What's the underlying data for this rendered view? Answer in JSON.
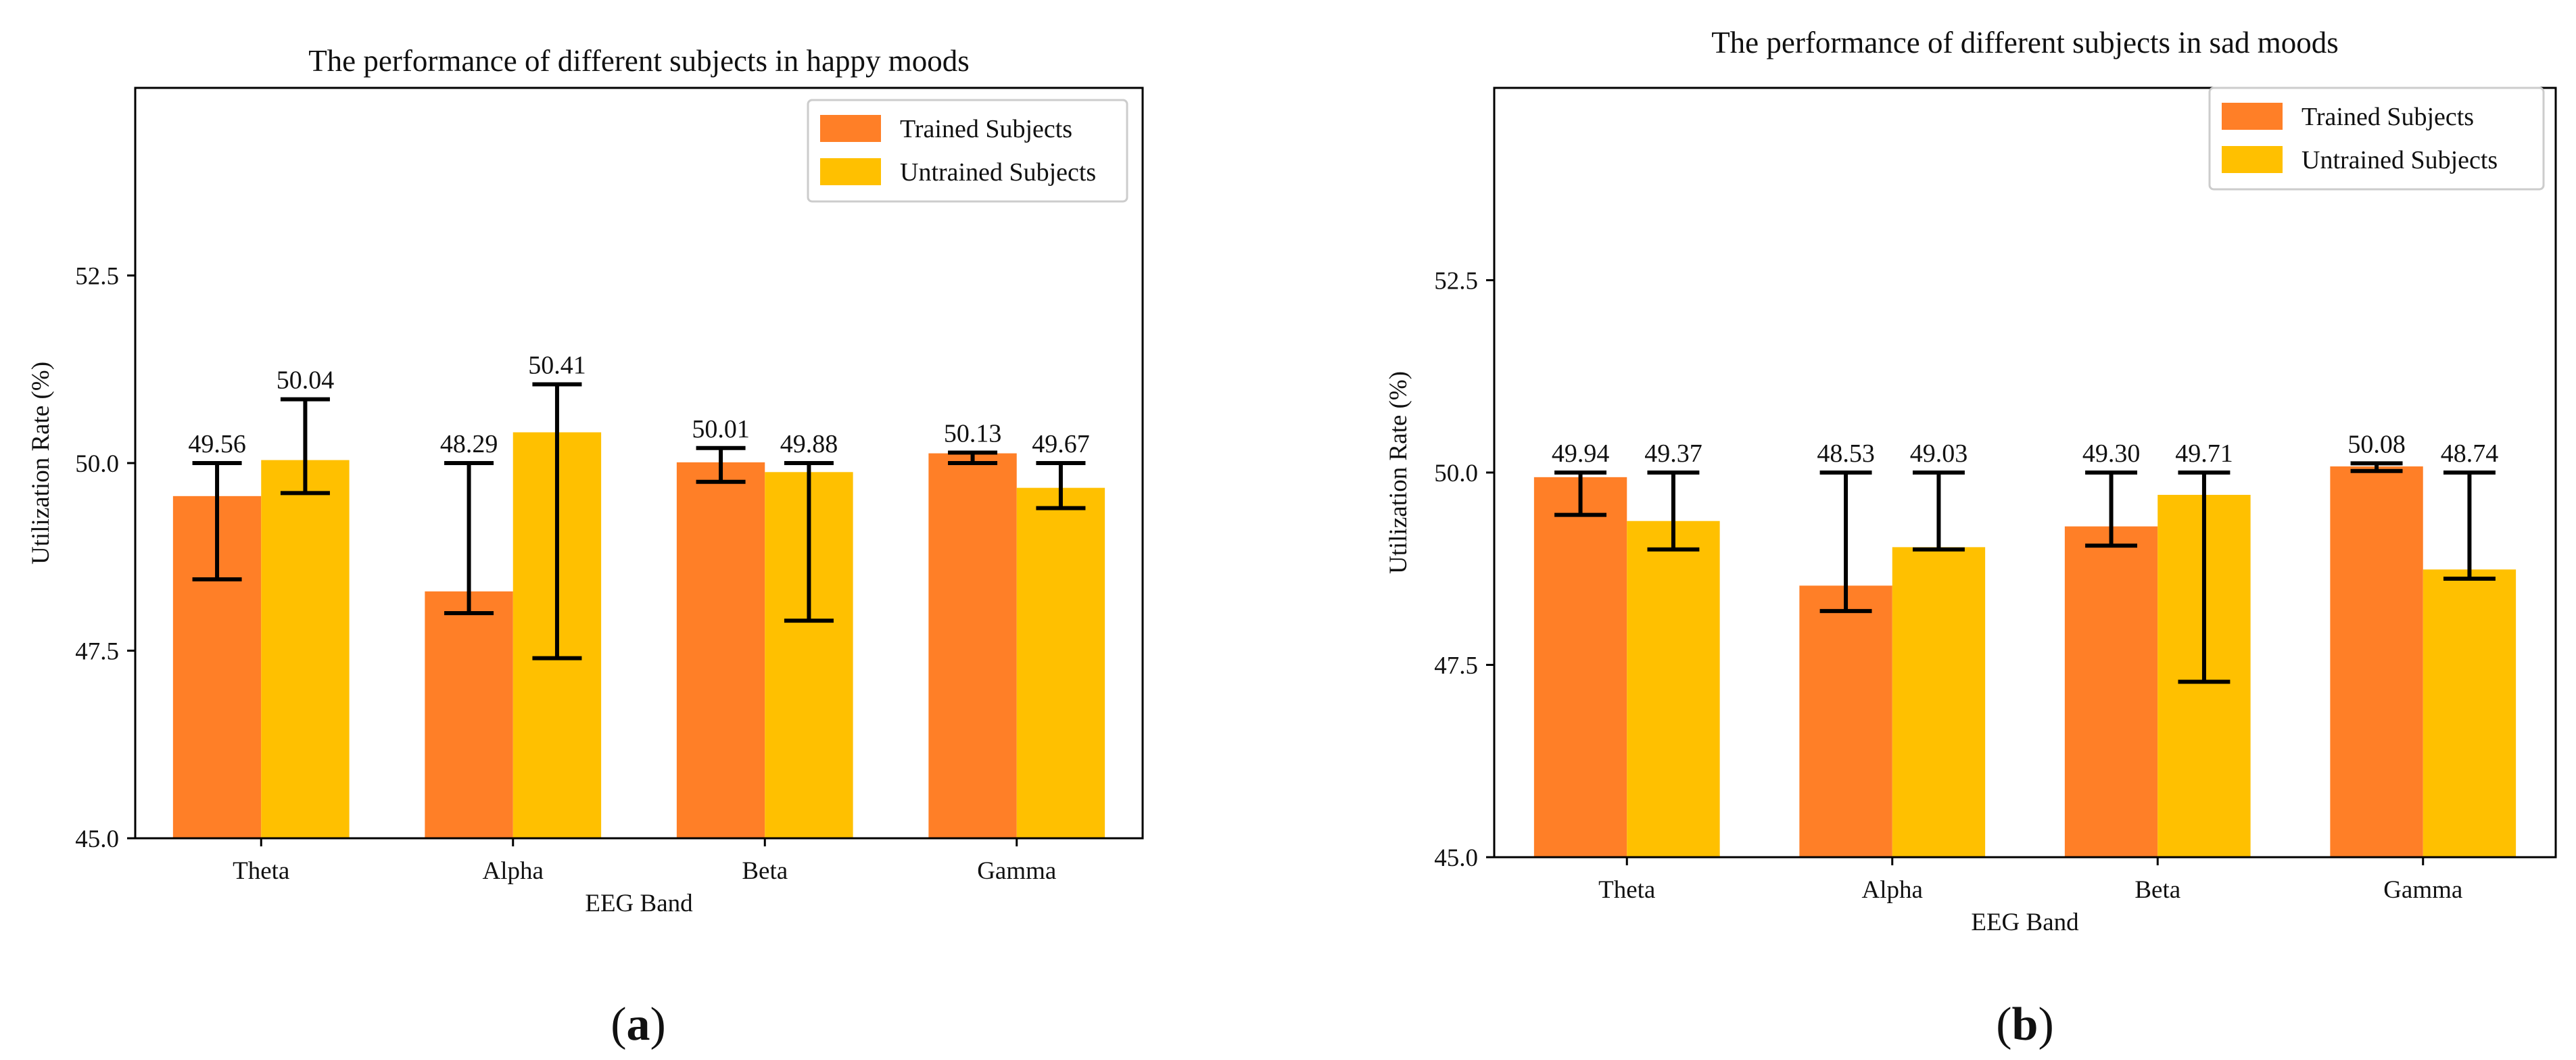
{
  "chart_data": [
    {
      "type": "bar",
      "title": "The performance of different subjects in happy moods",
      "xlabel": "EEG Band",
      "ylabel": "Utilization Rate (%)",
      "categories": [
        "Theta",
        "Alpha",
        "Beta",
        "Gamma"
      ],
      "ylim": [
        45.0,
        55.0
      ],
      "yticks": [
        45.0,
        47.5,
        50.0,
        52.5
      ],
      "ytick_labels": [
        "45.0",
        "47.5",
        "50.0",
        "52.5"
      ],
      "grid": false,
      "legend_position": "top-right",
      "series": [
        {
          "name": "Trained Subjects",
          "color": "#FF7F27",
          "values": [
            49.56,
            48.29,
            50.01,
            50.13
          ],
          "value_labels": [
            "49.56",
            "48.29",
            "50.01",
            "50.13"
          ],
          "error_low": [
            48.45,
            48.0,
            49.75,
            50.0
          ],
          "error_high": [
            50.0,
            50.0,
            50.2,
            50.14
          ]
        },
        {
          "name": "Untrained Subjects",
          "color": "#FFC000",
          "values": [
            50.04,
            50.41,
            49.88,
            49.67
          ],
          "value_labels": [
            "50.04",
            "50.41",
            "49.88",
            "49.67"
          ],
          "error_low": [
            49.6,
            47.4,
            47.9,
            49.4
          ],
          "error_high": [
            50.85,
            51.05,
            50.0,
            50.0
          ]
        }
      ],
      "caption_bold": "a"
    },
    {
      "type": "bar",
      "title": "The performance of different subjects in sad moods",
      "xlabel": "EEG Band",
      "ylabel": "Utilization Rate (%)",
      "categories": [
        "Theta",
        "Alpha",
        "Beta",
        "Gamma"
      ],
      "ylim": [
        45.0,
        55.0
      ],
      "yticks": [
        45.0,
        47.5,
        50.0,
        52.5
      ],
      "ytick_labels": [
        "45.0",
        "47.5",
        "50.0",
        "52.5"
      ],
      "grid": false,
      "legend_position": "top-right",
      "series": [
        {
          "name": "Trained Subjects",
          "color": "#FF7F27",
          "values": [
            49.94,
            48.53,
            49.3,
            50.08
          ],
          "value_labels": [
            "49.94",
            "48.53",
            "49.30",
            "50.08"
          ],
          "error_low": [
            49.45,
            48.2,
            49.05,
            50.02
          ],
          "error_high": [
            50.0,
            50.0,
            50.0,
            50.12
          ]
        },
        {
          "name": "Untrained Subjects",
          "color": "#FFC000",
          "values": [
            49.37,
            49.03,
            49.71,
            48.74
          ],
          "value_labels": [
            "49.37",
            "49.03",
            "49.71",
            "48.74"
          ],
          "error_low": [
            49.0,
            49.0,
            47.28,
            48.62
          ],
          "error_high": [
            50.0,
            50.0,
            50.0,
            50.0
          ]
        }
      ],
      "caption_bold": "b"
    }
  ],
  "caption_open": "(",
  "caption_close": ")"
}
